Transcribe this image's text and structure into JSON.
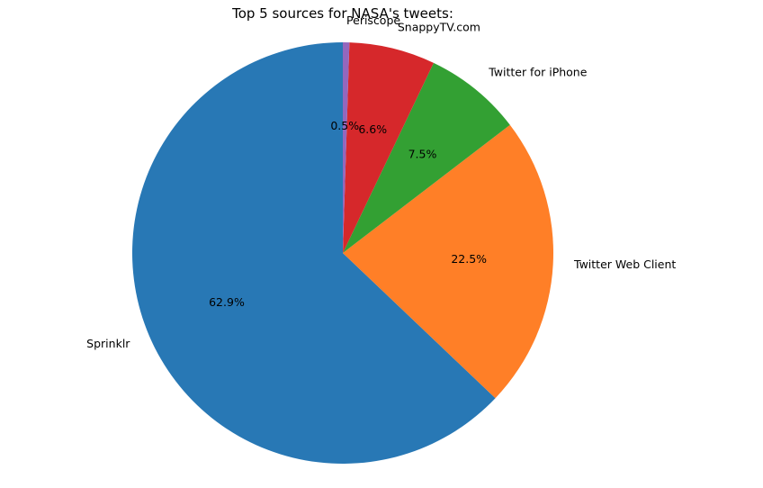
{
  "chart_data": {
    "type": "pie",
    "title": "Top 5 sources for NASA's tweets:",
    "start_angle": 90,
    "counterclockwise": true,
    "slices": [
      {
        "label": "Sprinklr",
        "value": 62.9,
        "pct_label": "62.9%",
        "color": "#2878b5"
      },
      {
        "label": "Twitter Web Client",
        "value": 22.5,
        "pct_label": "22.5%",
        "color": "#ff7f27"
      },
      {
        "label": "Twitter for iPhone",
        "value": 7.5,
        "pct_label": "7.5%",
        "color": "#33a033"
      },
      {
        "label": "SnappyTV.com",
        "value": 6.6,
        "pct_label": "6.6%",
        "color": "#d6282b"
      },
      {
        "label": "Periscope",
        "value": 0.5,
        "pct_label": "0.5%",
        "color": "#9467bd"
      }
    ]
  }
}
